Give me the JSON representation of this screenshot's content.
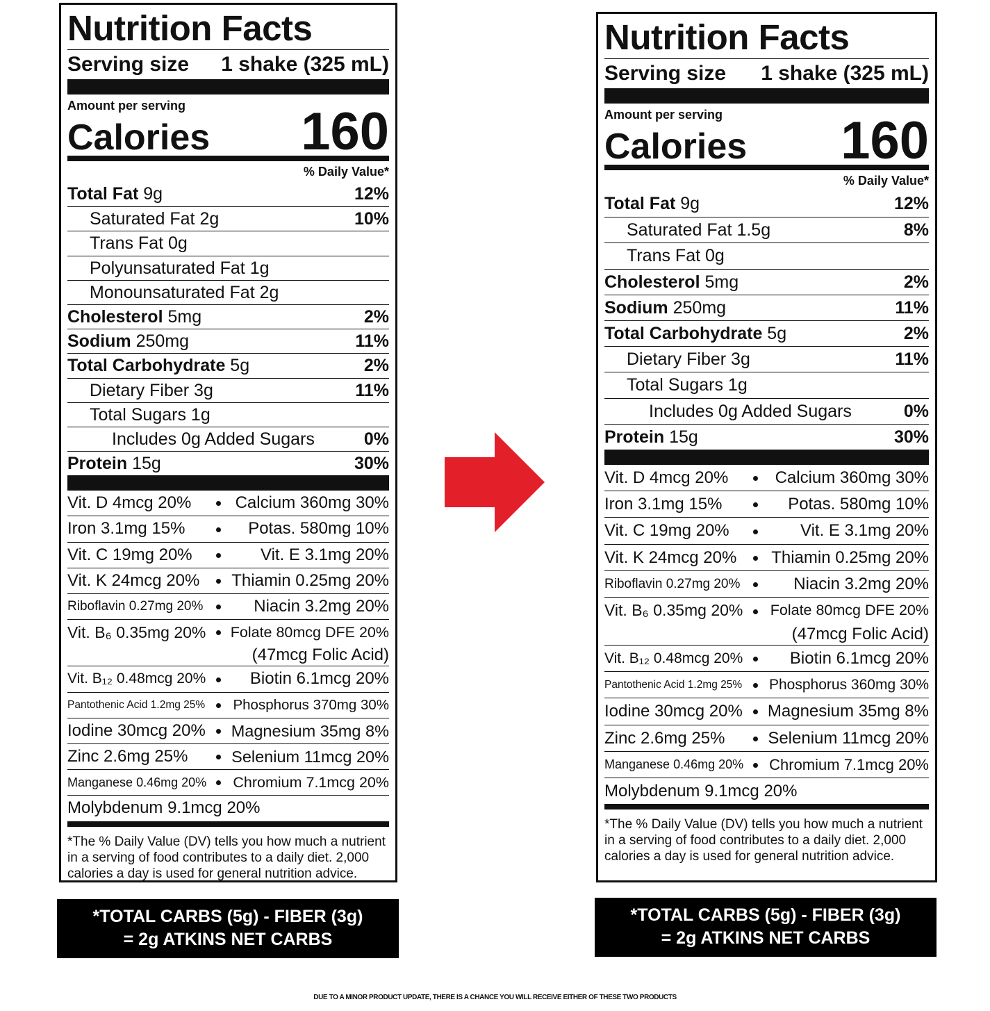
{
  "labels": [
    {
      "title": "Nutrition Facts",
      "serving_label": "Serving size",
      "serving_value": "1 shake (325 mL)",
      "amount_label": "Amount per serving",
      "calories_label": "Calories",
      "calories_value": 160,
      "dv_header": "% Daily Value*",
      "nutrients": [
        {
          "name": "Total Fat",
          "amount": "9g",
          "dv": "12%",
          "sub": [
            {
              "name": "Saturated Fat",
              "amount": "2g",
              "dv": "10%"
            },
            {
              "name": "Trans Fat",
              "amount": "0g"
            },
            {
              "name": "Polyunsaturated Fat",
              "amount": "1g"
            },
            {
              "name": "Monounsaturated Fat",
              "amount": "2g"
            }
          ]
        },
        {
          "name": "Cholesterol",
          "amount": "5mg",
          "dv": "2%"
        },
        {
          "name": "Sodium",
          "amount": "250mg",
          "dv": "11%"
        },
        {
          "name": "Total Carbohydrate",
          "amount": "5g",
          "dv": "2%",
          "sub": [
            {
              "name": "Dietary Fiber",
              "amount": "3g",
              "dv": "11%"
            },
            {
              "name": "Total Sugars",
              "amount": "1g",
              "sub": [
                {
                  "name": "Includes 0g Added Sugars",
                  "dv": "0%"
                }
              ]
            }
          ]
        },
        {
          "name": "Protein",
          "amount": "15g",
          "dv": "30%"
        }
      ],
      "vitamins": [
        {
          "left": "Vit. D 4mcg 20%",
          "right": "Calcium 360mg 30%"
        },
        {
          "left": "Iron 3.1mg 15%",
          "right": "Potas. 580mg 10%"
        },
        {
          "left": "Vit. C 19mg 20%",
          "right": "Vit. E 3.1mg 20%"
        },
        {
          "left": "Vit. K 24mcg 20%",
          "right": "Thiamin 0.25mg 20%"
        },
        {
          "left": "Riboflavin 0.27mg 20%",
          "right": "Niacin 3.2mg 20%"
        },
        {
          "left": "Vit. B₆ 0.35mg 20%",
          "right": "Folate 80mcg DFE 20%",
          "note": "(47mcg Folic Acid)"
        },
        {
          "left": "Vit. B₁₂ 0.48mcg 20%",
          "right": "Biotin 6.1mcg 20%"
        },
        {
          "left": "Pantothenic Acid 1.2mg 25%",
          "right": "Phosphorus 370mg 30%"
        },
        {
          "left": "Iodine 30mcg 20%",
          "right": "Magnesium 35mg 8%"
        },
        {
          "left": "Zinc 2.6mg 25%",
          "right": "Selenium 11mcg 20%"
        },
        {
          "left": "Manganese 0.46mg 20%",
          "right": "Chromium 7.1mcg 20%"
        },
        {
          "left": "Molybdenum 9.1mcg 20%"
        }
      ],
      "footnote": [
        "*The % Daily Value (DV) tells you how much a nutrient",
        "in a serving of food contributes to a daily diet. 2,000",
        "calories a day is used for general nutrition advice."
      ],
      "net_carbs": [
        "*TOTAL CARBS (5g) - FIBER (3g)",
        "= 2g ATKINS NET CARBS"
      ]
    },
    {
      "title": "Nutrition Facts",
      "serving_label": "Serving size",
      "serving_value": "1 shake (325 mL)",
      "amount_label": "Amount per serving",
      "calories_label": "Calories",
      "calories_value": 160,
      "dv_header": "% Daily Value*",
      "nutrients": [
        {
          "name": "Total Fat",
          "amount": "9g",
          "dv": "12%",
          "sub": [
            {
              "name": "Saturated Fat",
              "amount": "1.5g",
              "dv": "8%"
            },
            {
              "name": "Trans Fat",
              "amount": "0g"
            }
          ]
        },
        {
          "name": "Cholesterol",
          "amount": "5mg",
          "dv": "2%"
        },
        {
          "name": "Sodium",
          "amount": "250mg",
          "dv": "11%"
        },
        {
          "name": "Total Carbohydrate",
          "amount": "5g",
          "dv": "2%",
          "sub": [
            {
              "name": "Dietary Fiber",
              "amount": "3g",
              "dv": "11%"
            },
            {
              "name": "Total Sugars",
              "amount": "1g",
              "sub": [
                {
                  "name": "Includes 0g Added Sugars",
                  "dv": "0%"
                }
              ]
            }
          ]
        },
        {
          "name": "Protein",
          "amount": "15g",
          "dv": "30%"
        }
      ],
      "vitamins": [
        {
          "left": "Vit. D 4mcg 20%",
          "right": "Calcium 360mg 30%"
        },
        {
          "left": "Iron 3.1mg 15%",
          "right": "Potas. 580mg 10%"
        },
        {
          "left": "Vit. C 19mg 20%",
          "right": "Vit. E 3.1mg 20%"
        },
        {
          "left": "Vit. K 24mcg 20%",
          "right": "Thiamin 0.25mg 20%"
        },
        {
          "left": "Riboflavin 0.27mg 20%",
          "right": "Niacin 3.2mg 20%"
        },
        {
          "left": "Vit. B₆ 0.35mg 20%",
          "right": "Folate 80mcg DFE 20%",
          "note": "(47mcg Folic Acid)"
        },
        {
          "left": "Vit. B₁₂ 0.48mcg 20%",
          "right": "Biotin 6.1mcg 20%"
        },
        {
          "left": "Pantothenic Acid 1.2mg 25%",
          "right": "Phosphorus 360mg 30%"
        },
        {
          "left": "Iodine 30mcg 20%",
          "right": "Magnesium 35mg 8%"
        },
        {
          "left": "Zinc 2.6mg 25%",
          "right": "Selenium 11mcg 20%"
        },
        {
          "left": "Manganese 0.46mg 20%",
          "right": "Chromium 7.1mcg 20%"
        },
        {
          "left": "Molybdenum 9.1mcg 20%"
        }
      ],
      "footnote": [
        "*The % Daily Value (DV) tells you how much a nutrient",
        "in a serving of food contributes to a daily diet. 2,000",
        "calories a day is used for general nutrition advice."
      ],
      "net_carbs": [
        "*TOTAL CARBS (5g) - FIBER (3g)",
        "= 2g ATKINS NET CARBS"
      ]
    }
  ],
  "banner": "DUE TO A MINOR PRODUCT UPDATE, THERE IS A CHANCE YOU WILL RECEIVE EITHER OF THESE TWO PRODUCTS"
}
